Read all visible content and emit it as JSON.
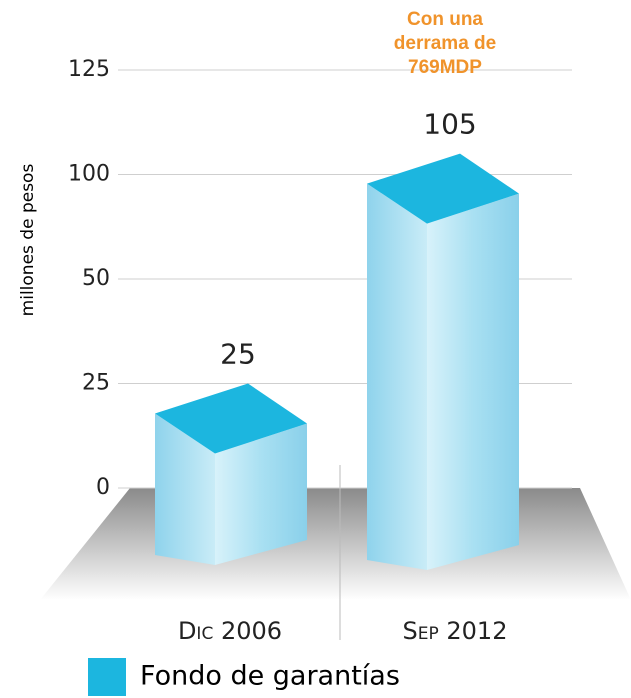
{
  "chart_data": {
    "type": "bar3d",
    "ylabel": "millones de pesos",
    "annotation": "Con una derrama de 769MDP",
    "categories": [
      "Dic 2006",
      "Sep 2012"
    ],
    "series": [
      {
        "name": "Fondo de garantías",
        "color": "#1cb6df",
        "values": [
          25,
          105
        ]
      }
    ],
    "ylim": [
      0,
      125
    ],
    "yticks": [
      0,
      25,
      50,
      100,
      125
    ],
    "grid": true
  }
}
